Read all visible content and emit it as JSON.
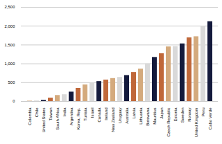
{
  "chart_data": {
    "type": "bar",
    "categories": [
      "Colombia",
      "Chile",
      "United States",
      "Taiwan",
      "South Africa",
      "India",
      "Argentina",
      "Korea, Rep.",
      "Tunisia",
      "Israel",
      "Canada",
      "Ireland",
      "New Zealand",
      "Uruguay",
      "Australia",
      "Latvia",
      "Lithuania",
      "Botswana",
      "Mauritius",
      "Japan",
      "Czech Republic",
      "Estonia",
      "Sweden",
      "Norway",
      "United Kingdom",
      "Peru",
      "Cabo Verde"
    ],
    "values": [
      10,
      15,
      30,
      90,
      160,
      180,
      250,
      350,
      440,
      490,
      530,
      570,
      610,
      640,
      690,
      770,
      860,
      1000,
      1170,
      1270,
      1450,
      1460,
      1530,
      1690,
      1720,
      1990,
      2120
    ],
    "colors": [
      "#d4aa7d",
      "#d9d9d9",
      "#141a3c",
      "#c0683a",
      "#d4aa7d",
      "#d9d9d9",
      "#141a3c",
      "#c0683a",
      "#d4aa7d",
      "#d9d9d9",
      "#141a3c",
      "#c0683a",
      "#d4aa7d",
      "#d9d9d9",
      "#141a3c",
      "#c0683a",
      "#d4aa7d",
      "#d9d9d9",
      "#141a3c",
      "#c0683a",
      "#d4aa7d",
      "#d9d9d9",
      "#141a3c",
      "#c0683a",
      "#d4aa7d",
      "#d9d9d9",
      "#141a3c"
    ],
    "ylim": [
      0,
      2500
    ],
    "yticks": [
      0,
      500,
      1000,
      1500,
      2000,
      2500
    ],
    "grid": true
  }
}
